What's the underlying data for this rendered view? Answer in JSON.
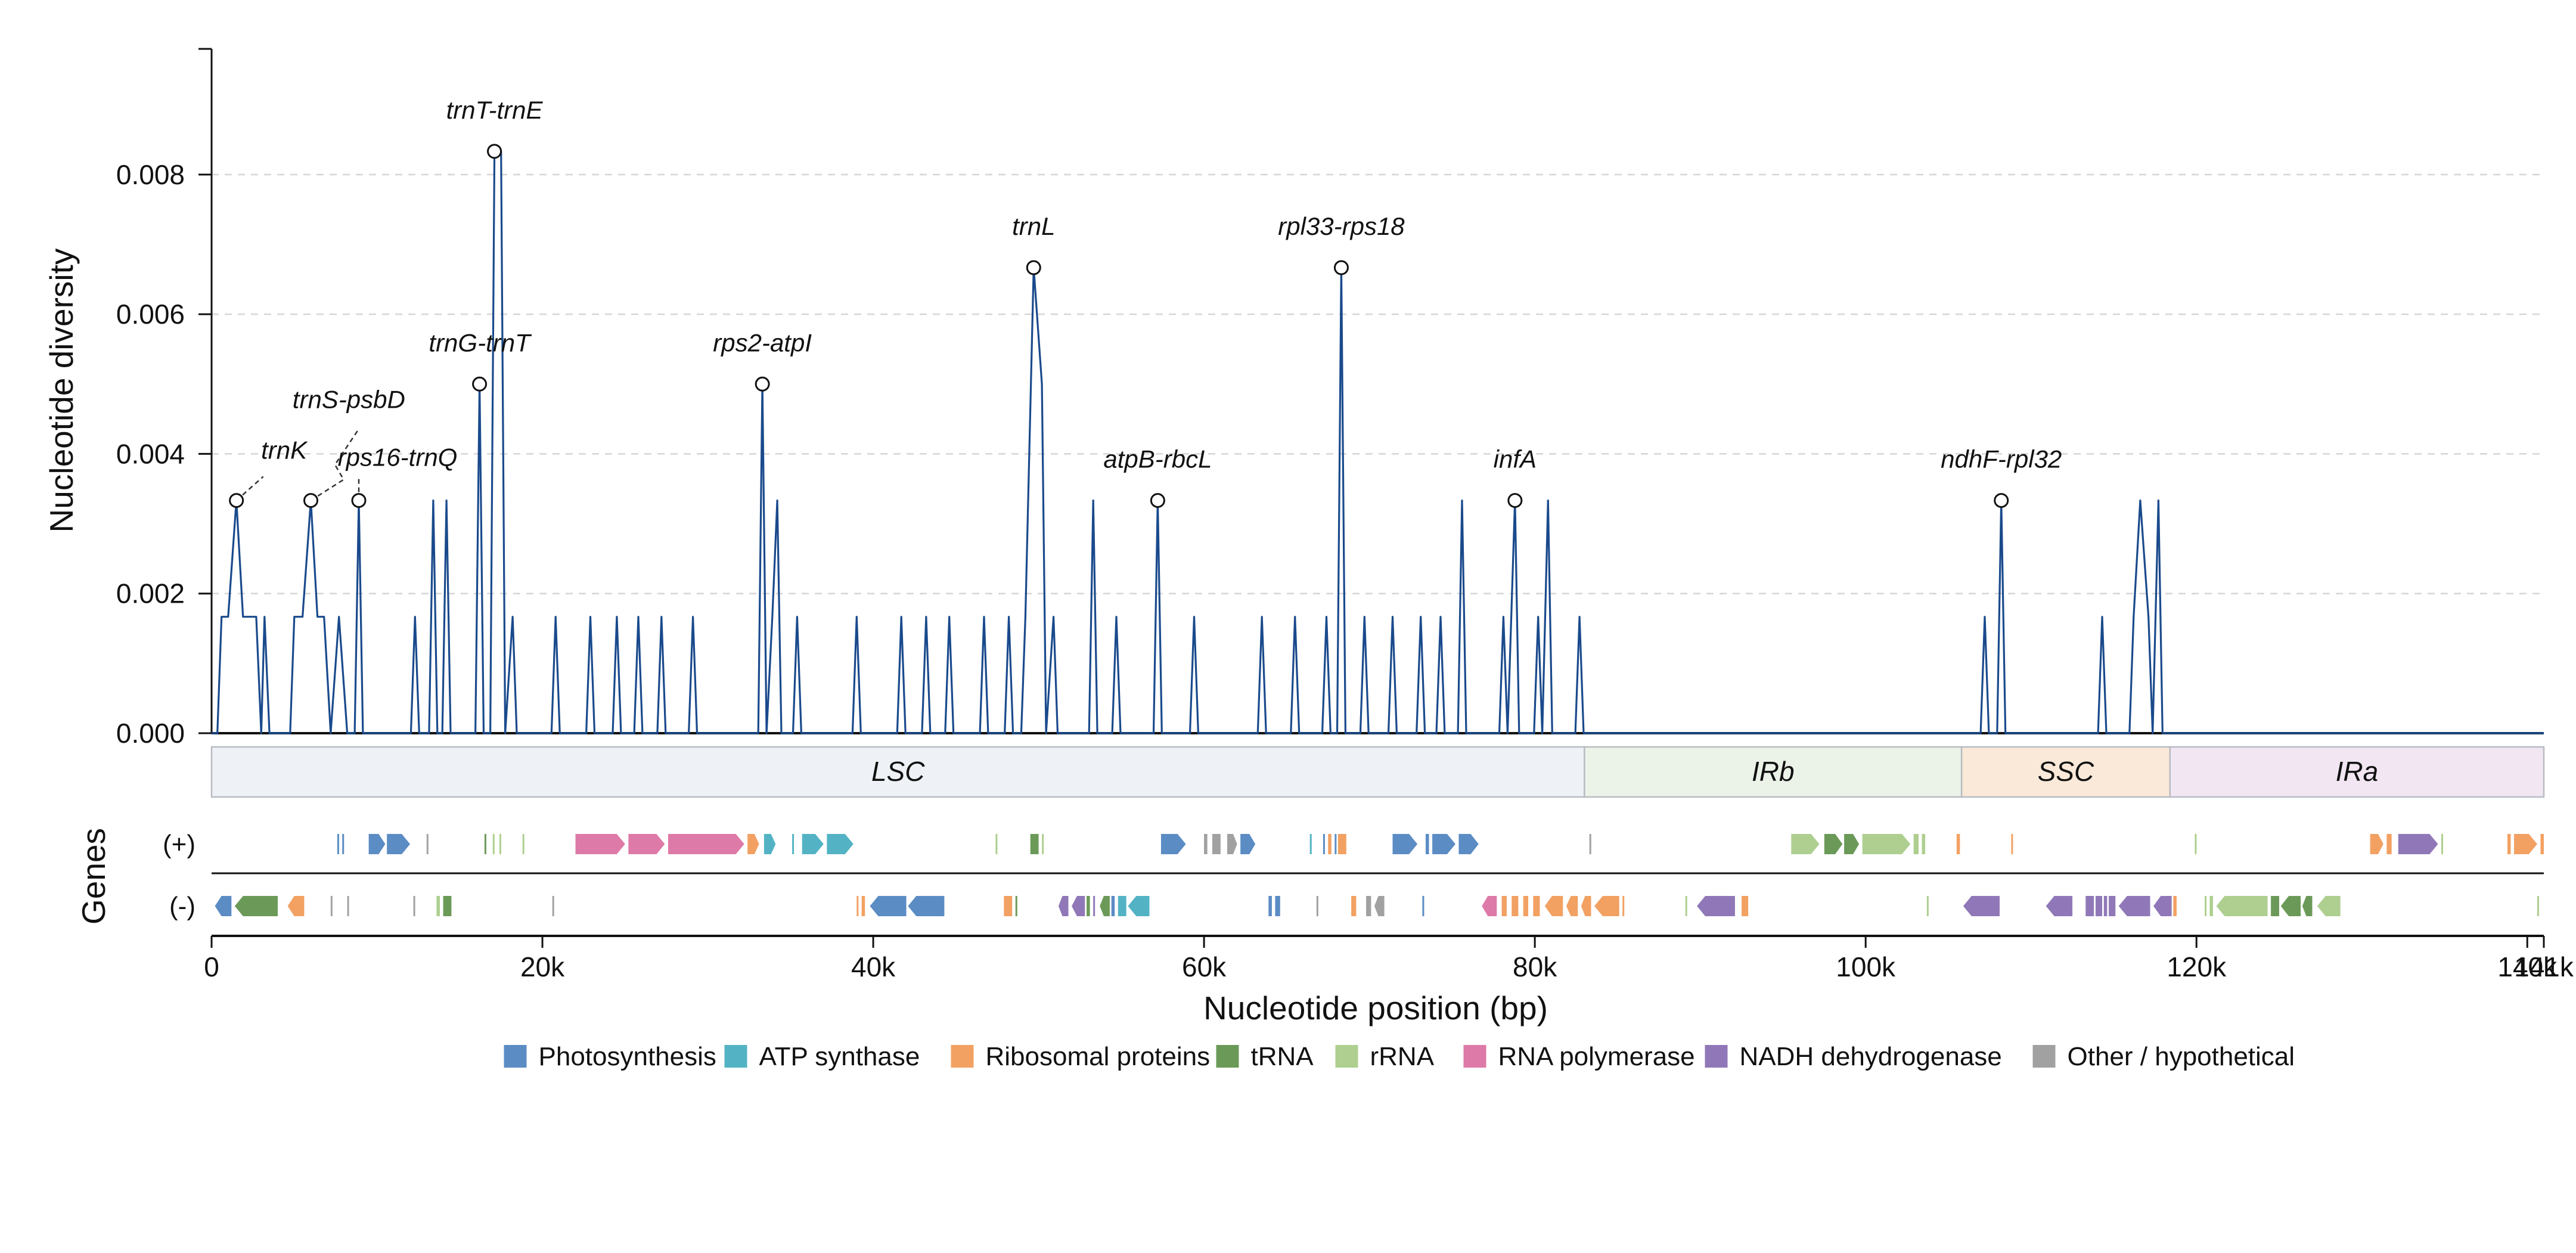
{
  "chart_data": {
    "type": "line",
    "xlabel": "Nucleotide position (bp)",
    "ylabel": "Nucleotide diversity",
    "genes_label": "Genes",
    "strand_plus_label": "(+)",
    "strand_minus_label": "(-)",
    "xlim": [
      0,
      141000
    ],
    "ylim": [
      0,
      0.0098
    ],
    "x_ticks": [
      0,
      20000,
      40000,
      60000,
      80000,
      100000,
      120000,
      140000,
      141000
    ],
    "x_tick_labels": [
      "0",
      "20k",
      "40k",
      "60k",
      "80k",
      "100k",
      "120k",
      "140k",
      "141k"
    ],
    "y_ticks": [
      0,
      0.002,
      0.004,
      0.006,
      0.008
    ],
    "y_tick_labels": [
      "0.000",
      "0.002",
      "0.004",
      "0.006",
      "0.008"
    ],
    "grid": "y-dashed",
    "series_color": "#1a4a8c",
    "windows": [
      [
        600,
        0.001667
      ],
      [
        1000,
        0.001667
      ],
      [
        1500,
        0.003333
      ],
      [
        1900,
        0.001667
      ],
      [
        2300,
        0.001667
      ],
      [
        2700,
        0.001667
      ],
      [
        3000,
        0
      ],
      [
        3200,
        0.001667
      ],
      [
        3500,
        0
      ],
      [
        5000,
        0.001667
      ],
      [
        5500,
        0.001667
      ],
      [
        6000,
        0.003333
      ],
      [
        6400,
        0.001667
      ],
      [
        6800,
        0.001667
      ],
      [
        7200,
        0
      ],
      [
        7700,
        0.001667
      ],
      [
        8200,
        0
      ],
      [
        8900,
        0.003333
      ],
      [
        12300,
        0.001667
      ],
      [
        13400,
        0.003333
      ],
      [
        14200,
        0.003333
      ],
      [
        16200,
        0.005
      ],
      [
        17100,
        0.008333
      ],
      [
        17500,
        0.008333
      ],
      [
        18200,
        0.001667
      ],
      [
        20800,
        0.001667
      ],
      [
        22900,
        0.001667
      ],
      [
        24500,
        0.001667
      ],
      [
        25800,
        0.001667
      ],
      [
        27200,
        0.001667
      ],
      [
        29100,
        0.001667
      ],
      [
        33300,
        0.005
      ],
      [
        33900,
        0.001667
      ],
      [
        34200,
        0.003333
      ],
      [
        35400,
        0.001667
      ],
      [
        39000,
        0.001667
      ],
      [
        41700,
        0.001667
      ],
      [
        43200,
        0.001667
      ],
      [
        44600,
        0.001667
      ],
      [
        46700,
        0.001667
      ],
      [
        48200,
        0.001667
      ],
      [
        49200,
        0.001667
      ],
      [
        49700,
        0.006667
      ],
      [
        50200,
        0.005
      ],
      [
        50900,
        0.001667
      ],
      [
        53300,
        0.003333
      ],
      [
        54700,
        0.001667
      ],
      [
        57200,
        0.003333
      ],
      [
        59400,
        0.001667
      ],
      [
        63500,
        0.001667
      ],
      [
        65500,
        0.001667
      ],
      [
        67400,
        0.001667
      ],
      [
        68300,
        0.006667
      ],
      [
        69700,
        0.001667
      ],
      [
        71400,
        0.001667
      ],
      [
        73100,
        0.001667
      ],
      [
        74300,
        0.001667
      ],
      [
        75600,
        0.003333
      ],
      [
        78100,
        0.001667
      ],
      [
        78800,
        0.003333
      ],
      [
        80200,
        0.001667
      ],
      [
        80800,
        0.003333
      ],
      [
        82700,
        0.001667
      ],
      [
        107200,
        0.001667
      ],
      [
        108200,
        0.003333
      ],
      [
        114300,
        0.001667
      ],
      [
        116200,
        0.001667
      ],
      [
        116600,
        0.003333
      ],
      [
        117100,
        0.001667
      ],
      [
        117700,
        0.003333
      ]
    ],
    "peaks": [
      {
        "label": "trnK",
        "x": 1500,
        "y": 0.003333
      },
      {
        "label": "trnS-psbD",
        "x": 6000,
        "y": 0.003333
      },
      {
        "label": "rps16-trnQ",
        "x": 8900,
        "y": 0.003333
      },
      {
        "label": "trnG-trnT",
        "x": 16200,
        "y": 0.005
      },
      {
        "label": "trnT-trnE",
        "x": 17100,
        "y": 0.008333
      },
      {
        "label": "rps2-atpI",
        "x": 33300,
        "y": 0.005
      },
      {
        "label": "trnL",
        "x": 49700,
        "y": 0.006667
      },
      {
        "label": "atpB-rbcL",
        "x": 57200,
        "y": 0.003333
      },
      {
        "label": "rpl33-rps18",
        "x": 68300,
        "y": 0.006667
      },
      {
        "label": "infA",
        "x": 78800,
        "y": 0.003333
      },
      {
        "label": "ndhF-rpl32",
        "x": 108200,
        "y": 0.003333
      }
    ],
    "regions": [
      {
        "label": "LSC",
        "start": 0,
        "end": 83000,
        "color": "#eef2f6"
      },
      {
        "label": "IRb",
        "start": 83000,
        "end": 105800,
        "color": "#ebf3e8"
      },
      {
        "label": "SSC",
        "start": 105800,
        "end": 118400,
        "color": "#fae9d8"
      },
      {
        "label": "IRa",
        "start": 118400,
        "end": 141000,
        "color": "#f1e6f2"
      }
    ],
    "gene_categories": [
      {
        "key": "photo",
        "name": "Photosynthesis",
        "color": "#5b8cc4"
      },
      {
        "key": "atp",
        "name": "ATP synthase",
        "color": "#53b3c4"
      },
      {
        "key": "ribo",
        "name": "Ribosomal proteins",
        "color": "#f2a163"
      },
      {
        "key": "trna",
        "name": "tRNA",
        "color": "#6b9a58"
      },
      {
        "key": "rrna",
        "name": "rRNA",
        "color": "#aecf90"
      },
      {
        "key": "rnap",
        "name": "RNA polymerase",
        "color": "#de7aa8"
      },
      {
        "key": "ndh",
        "name": "NADH dehydrogenase",
        "color": "#9078b8"
      },
      {
        "key": "other",
        "name": "Other / hypothetical",
        "color": "#a1a1a1"
      }
    ],
    "genes_plus": [
      [
        "photo",
        7600,
        7700
      ],
      [
        "photo",
        7900,
        8000
      ],
      [
        "photo",
        9500,
        10500
      ],
      [
        "photo",
        10600,
        12000
      ],
      [
        "other",
        13000,
        13100
      ],
      [
        "trna",
        16500,
        16600
      ],
      [
        "rrna",
        17000,
        17100
      ],
      [
        "rrna",
        17400,
        17500
      ],
      [
        "rrna",
        18800,
        18900
      ],
      [
        "rnap",
        22000,
        25000
      ],
      [
        "rnap",
        25200,
        27400
      ],
      [
        "rnap",
        27600,
        32200
      ],
      [
        "ribo",
        32400,
        33100
      ],
      [
        "atp",
        33400,
        34100
      ],
      [
        "atp",
        35100,
        35200
      ],
      [
        "atp",
        35700,
        37000
      ],
      [
        "atp",
        37200,
        38800
      ],
      [
        "rrna",
        47400,
        47500
      ],
      [
        "trna",
        49500,
        50000
      ],
      [
        "rrna",
        50200,
        50300
      ],
      [
        "photo",
        57400,
        58900
      ],
      [
        "other",
        60000,
        60200
      ],
      [
        "other",
        60500,
        61000
      ],
      [
        "other",
        61400,
        62000
      ],
      [
        "photo",
        62200,
        63100
      ],
      [
        "atp",
        66400,
        66500
      ],
      [
        "photo",
        67200,
        67300
      ],
      [
        "ribo",
        67500,
        67700
      ],
      [
        "photo",
        67900,
        68000
      ],
      [
        "ribo",
        68100,
        68600
      ],
      [
        "photo",
        71400,
        72900
      ],
      [
        "photo",
        73400,
        73600
      ],
      [
        "photo",
        73800,
        75200
      ],
      [
        "photo",
        75400,
        76600
      ],
      [
        "other",
        83300,
        83400
      ],
      [
        "rrna",
        95500,
        97200
      ],
      [
        "trna",
        97500,
        98600
      ],
      [
        "trna",
        98700,
        99600
      ],
      [
        "rrna",
        99800,
        102700
      ],
      [
        "rrna",
        102900,
        103200
      ],
      [
        "rrna",
        103400,
        103600
      ],
      [
        "ribo",
        105500,
        105700
      ],
      [
        "ribo",
        108800,
        108900
      ],
      [
        "rrna",
        119900,
        120000
      ],
      [
        "ribo",
        130500,
        131300
      ],
      [
        "ribo",
        131500,
        131800
      ],
      [
        "ndh",
        132200,
        134600
      ],
      [
        "rrna",
        134800,
        134900
      ],
      [
        "ribo",
        138800,
        139000
      ],
      [
        "ribo",
        139200,
        140600
      ],
      [
        "ribo",
        140800,
        141000
      ]
    ],
    "genes_minus": [
      [
        "photo",
        200,
        1200
      ],
      [
        "trna",
        1400,
        4000
      ],
      [
        "ribo",
        4600,
        5600
      ],
      [
        "other",
        7200,
        7300
      ],
      [
        "other",
        8200,
        8300
      ],
      [
        "other",
        12200,
        12300
      ],
      [
        "rrna",
        13600,
        13800
      ],
      [
        "trna",
        14000,
        14500
      ],
      [
        "other",
        20600,
        20700
      ],
      [
        "ribo",
        39000,
        39100
      ],
      [
        "ribo",
        39300,
        39500
      ],
      [
        "photo",
        39800,
        42000
      ],
      [
        "photo",
        42100,
        44300
      ],
      [
        "ribo",
        47900,
        48400
      ],
      [
        "trna",
        48600,
        48700
      ],
      [
        "ndh",
        51200,
        51800
      ],
      [
        "ndh",
        52000,
        52800
      ],
      [
        "trna",
        52900,
        53100
      ],
      [
        "ndh",
        53300,
        53400
      ],
      [
        "trna",
        53700,
        54300
      ],
      [
        "photo",
        54400,
        54600
      ],
      [
        "atp",
        54800,
        55300
      ],
      [
        "atp",
        55400,
        56700
      ],
      [
        "photo",
        63900,
        64100
      ],
      [
        "photo",
        64300,
        64600
      ],
      [
        "other",
        66800,
        66900
      ],
      [
        "ribo",
        68900,
        69200
      ],
      [
        "other",
        69800,
        70100
      ],
      [
        "other",
        70300,
        70900
      ],
      [
        "photo",
        73200,
        73300
      ],
      [
        "rnap",
        76800,
        77700
      ],
      [
        "ribo",
        78000,
        78300
      ],
      [
        "ribo",
        78600,
        79000
      ],
      [
        "ribo",
        79300,
        79600
      ],
      [
        "ribo",
        79900,
        80300
      ],
      [
        "ribo",
        80600,
        81700
      ],
      [
        "ribo",
        81900,
        82600
      ],
      [
        "ribo",
        82800,
        83400
      ],
      [
        "ribo",
        83600,
        85100
      ],
      [
        "ribo",
        85300,
        85400
      ],
      [
        "rrna",
        89100,
        89200
      ],
      [
        "ndh",
        89800,
        92100
      ],
      [
        "ribo",
        92500,
        92900
      ],
      [
        "rrna",
        103700,
        103800
      ],
      [
        "ndh",
        105900,
        108100
      ],
      [
        "ndh",
        110900,
        112500
      ],
      [
        "ndh",
        113300,
        113800
      ],
      [
        "ndh",
        113900,
        114300
      ],
      [
        "ndh",
        114400,
        114600
      ],
      [
        "ndh",
        114700,
        115100
      ],
      [
        "ndh",
        115300,
        117200
      ],
      [
        "ndh",
        117400,
        118500
      ],
      [
        "ribo",
        118600,
        118800
      ],
      [
        "rrna",
        120500,
        120600
      ],
      [
        "rrna",
        120800,
        121000
      ],
      [
        "rrna",
        121200,
        124300
      ],
      [
        "trna",
        124500,
        125000
      ],
      [
        "trna",
        125100,
        126300
      ],
      [
        "trna",
        126400,
        127000
      ],
      [
        "rrna",
        127300,
        128700
      ],
      [
        "rrna",
        140600,
        140700
      ]
    ]
  }
}
